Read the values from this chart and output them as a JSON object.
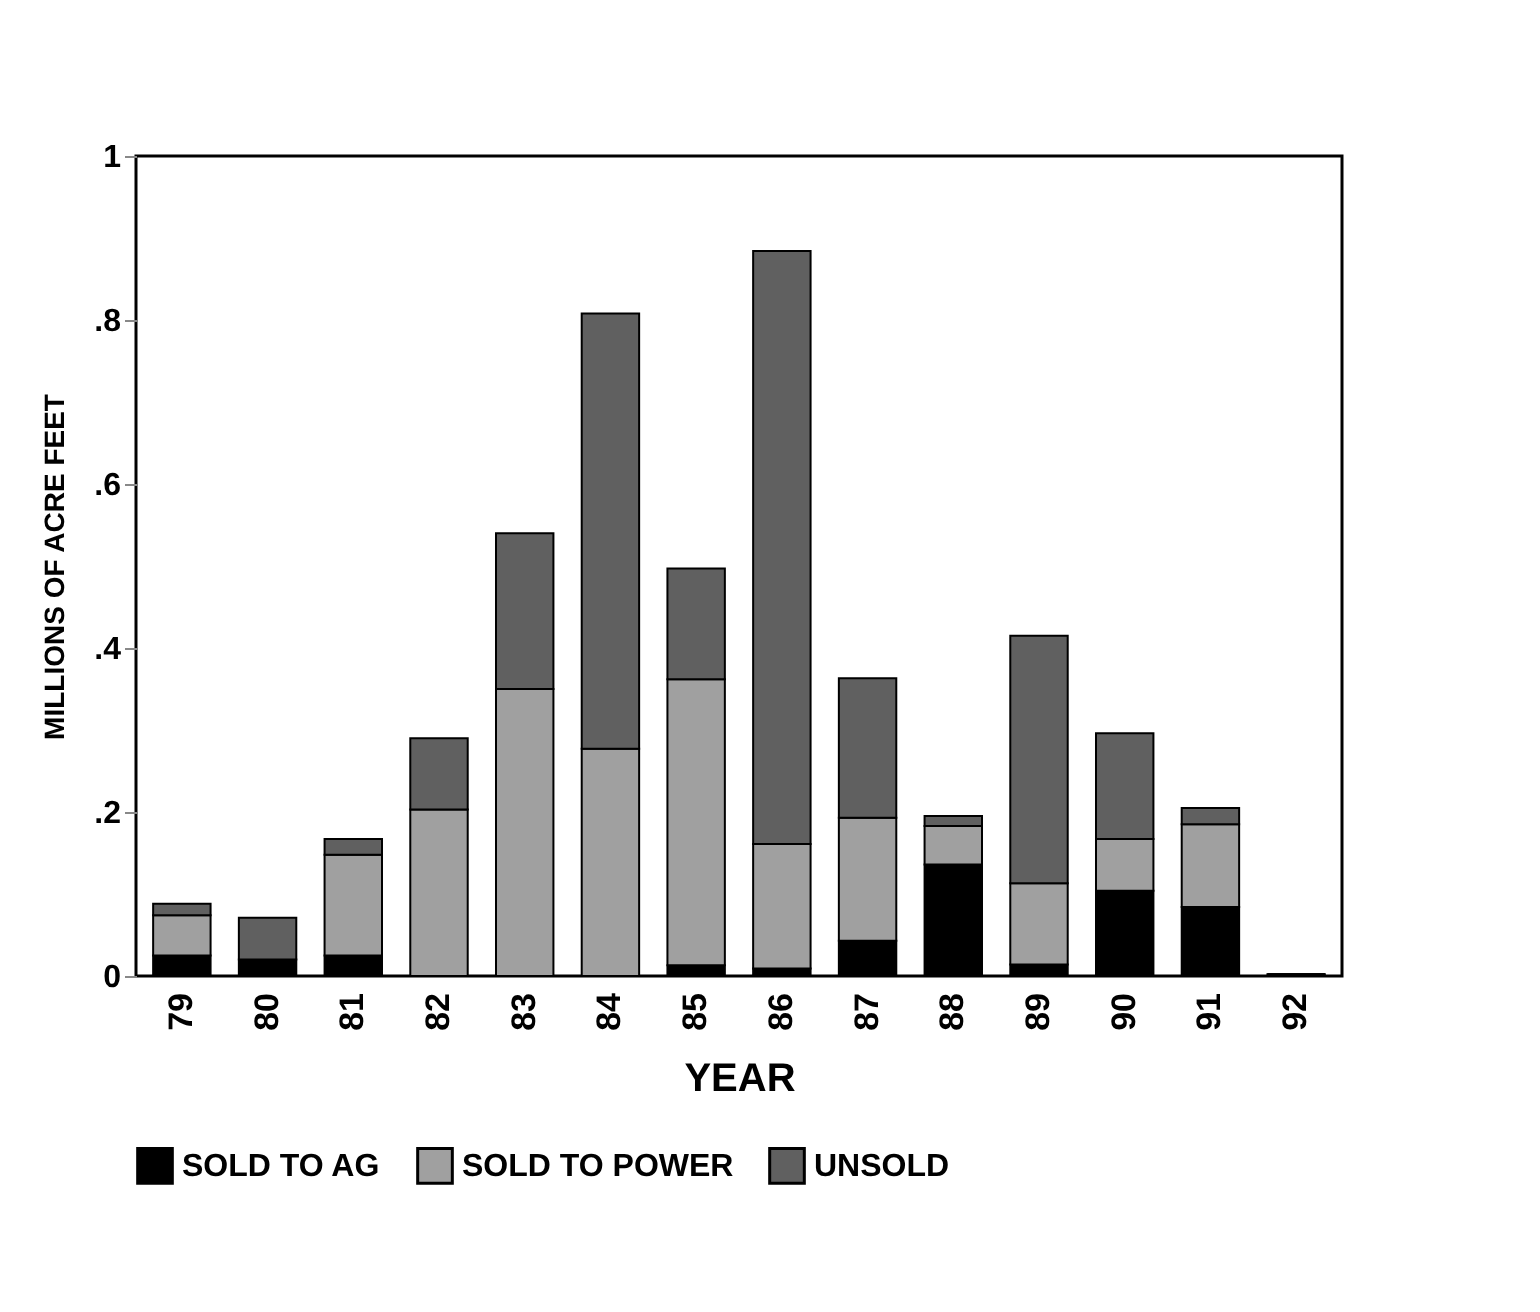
{
  "chart_data": {
    "type": "bar",
    "stacked": true,
    "xlabel": "YEAR",
    "ylabel": "MILLIONS OF ACRE FEET",
    "categories": [
      "79",
      "80",
      "81",
      "82",
      "83",
      "84",
      "85",
      "86",
      "87",
      "88",
      "89",
      "90",
      "91",
      "92"
    ],
    "series": [
      {
        "name": "SOLD TO AG",
        "color": "#000000",
        "values": [
          0.025,
          0.02,
          0.025,
          0,
          0,
          0,
          0.013,
          0.009,
          0.043,
          0.136,
          0.014,
          0.104,
          0.084,
          0.002
        ]
      },
      {
        "name": "SOLD TO POWER",
        "color": "#a0a0a0",
        "values": [
          0.049,
          0,
          0.123,
          0.203,
          0.35,
          0.277,
          0.349,
          0.152,
          0.15,
          0.047,
          0.099,
          0.063,
          0.101,
          0
        ]
      },
      {
        "name": "UNSOLD",
        "color": "#606060",
        "values": [
          0.014,
          0.051,
          0.019,
          0.087,
          0.19,
          0.531,
          0.135,
          0.723,
          0.17,
          0.012,
          0.302,
          0.129,
          0.02,
          0
        ]
      }
    ],
    "ylim": [
      0,
      1
    ],
    "yticks": [
      0,
      {
        "value": 0.2,
        "label": ".2"
      },
      {
        "value": 0.4,
        "label": ".4"
      },
      {
        "value": 0.6,
        "label": ".6"
      },
      {
        "value": 0.8,
        "label": ".8"
      },
      1
    ],
    "grid": false,
    "legend": "bottom"
  }
}
